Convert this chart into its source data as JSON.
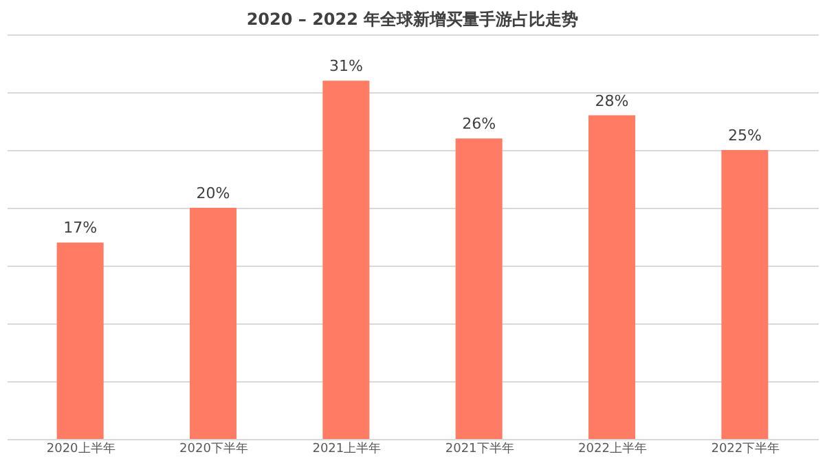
{
  "chart_data": {
    "type": "bar",
    "title": "2020 – 2022 年全球新增买量手游占比走势",
    "categories": [
      "2020上半年",
      "2020下半年",
      "2021上半年",
      "2021下半年",
      "2022上半年",
      "2022下半年"
    ],
    "values": [
      17,
      20,
      31,
      26,
      28,
      25
    ],
    "value_labels": [
      "17%",
      "20%",
      "31%",
      "26%",
      "28%",
      "25%"
    ],
    "color": "#ff7b63",
    "ylim": [
      0,
      35
    ],
    "yticks": [
      {
        "value": 0,
        "label": null
      },
      {
        "value": 5,
        "label": null
      },
      {
        "value": 10,
        "label": null
      },
      {
        "value": 15,
        "label": null
      },
      {
        "value": 20,
        "label": null
      },
      {
        "value": 25,
        "label": null
      },
      {
        "value": 30,
        "label": null
      },
      {
        "value": 35,
        "label": null
      }
    ],
    "grid": "y",
    "tick_labels": "x"
  }
}
